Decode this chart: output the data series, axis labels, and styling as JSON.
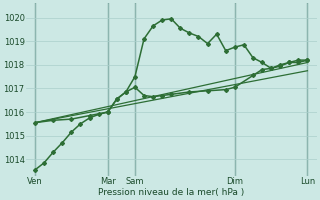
{
  "xlabel": "Pression niveau de la mer( hPa )",
  "bg_color": "#cce8e4",
  "grid_color": "#aacfcb",
  "line_color": "#2d6e35",
  "vline_color": "#4a7a72",
  "ylim": [
    1013.3,
    1020.6
  ],
  "yticks": [
    1014,
    1015,
    1016,
    1017,
    1018,
    1019,
    1020
  ],
  "xlim": [
    0,
    32
  ],
  "xtick_pos": [
    1,
    9,
    12,
    23,
    31
  ],
  "xtick_labels": [
    "Ven",
    "Mar",
    "Sam",
    "Dim",
    "Lun"
  ],
  "vlines": [
    1,
    9,
    12,
    23,
    31
  ],
  "trend1": {
    "x": [
      1,
      31
    ],
    "y": [
      1015.55,
      1018.1
    ],
    "lw": 0.9
  },
  "trend2": {
    "x": [
      1,
      31
    ],
    "y": [
      1015.55,
      1017.75
    ],
    "lw": 0.9
  },
  "series1": {
    "x": [
      1,
      2,
      3,
      4,
      5,
      6,
      7,
      8,
      9,
      10,
      11,
      12,
      13,
      14,
      15,
      16,
      17,
      18,
      19,
      20,
      21,
      22,
      23,
      24,
      25,
      26,
      27,
      28,
      29,
      30,
      31
    ],
    "y": [
      1013.55,
      1013.85,
      1014.3,
      1014.7,
      1015.15,
      1015.5,
      1015.75,
      1015.9,
      1016.0,
      1016.55,
      1016.85,
      1017.5,
      1019.1,
      1019.65,
      1019.9,
      1019.95,
      1019.55,
      1019.35,
      1019.2,
      1018.9,
      1019.3,
      1018.6,
      1018.75,
      1018.85,
      1018.3,
      1018.1,
      1017.85,
      1018.0,
      1018.1,
      1018.1,
      1018.2
    ],
    "lw": 1.1,
    "marker": "D",
    "ms": 2.0
  },
  "series2": {
    "x": [
      1,
      3,
      5,
      7,
      9,
      10,
      11,
      12,
      13,
      14,
      15,
      16,
      18,
      20,
      22,
      23,
      25,
      26,
      27,
      28,
      29,
      30,
      31
    ],
    "y": [
      1015.55,
      1015.65,
      1015.7,
      1015.85,
      1016.0,
      1016.55,
      1016.85,
      1017.05,
      1016.7,
      1016.65,
      1016.7,
      1016.75,
      1016.85,
      1016.9,
      1016.95,
      1017.05,
      1017.55,
      1017.8,
      1017.85,
      1017.95,
      1018.1,
      1018.2,
      1018.2
    ],
    "lw": 1.1,
    "marker": "D",
    "ms": 2.0
  }
}
